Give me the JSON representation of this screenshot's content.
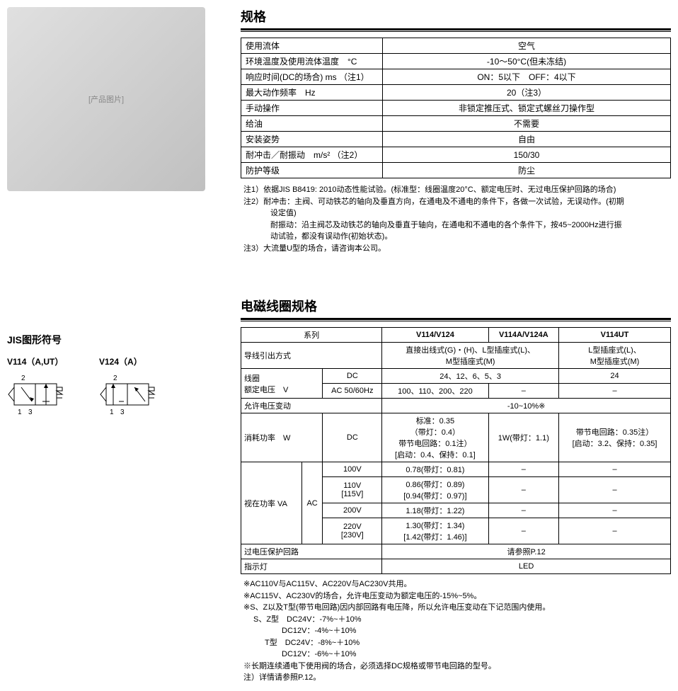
{
  "section1": {
    "title": "规格"
  },
  "spec": {
    "rows": [
      {
        "label": "使用流体",
        "val": "空气"
      },
      {
        "label": "环境温度及使用流体温度　°C",
        "val": "-10～50°C(但未冻结)"
      },
      {
        "label": "响应时间(DC的场合) ms （注1）",
        "val": "ON：5以下　OFF：4以下"
      },
      {
        "label": "最大动作频率　Hz",
        "val": "20（注3）"
      },
      {
        "label": "手动操作",
        "val": "非锁定推压式、锁定式螺丝刀操作型"
      },
      {
        "label": "给油",
        "val": "不需要"
      },
      {
        "label": "安装姿势",
        "val": "自由"
      },
      {
        "label": "耐冲击／耐振动　m/s² （注2）",
        "val": "150/30"
      },
      {
        "label": "防护等级",
        "val": "防尘"
      }
    ]
  },
  "notes1": {
    "n1": "注1）依据JIS B8419: 2010动态性能试验。(标准型：线圈温度20°C、额定电压时、无过电压保护回路的场合)",
    "n2a": "注2）耐冲击：主阀、可动铁芯的轴向及垂直方向，在通电及不通电的条件下，各做一次试验，无误动作。(初期",
    "n2b": "设定值)",
    "n2c": "耐振动：沿主阀芯及动铁芯的轴向及垂直于轴向，在通电和不通电的各个条件下，按45~2000Hz进行振",
    "n2d": "动试验，都没有误动作(初始状态)。",
    "n3": "注3）大流量U型的场合，请咨询本公司。"
  },
  "section2": {
    "title": "电磁线圈规格"
  },
  "jis": {
    "title": "JIS图形符号",
    "sym1": "V114（A,UT）",
    "sym2": "V124（A）"
  },
  "coil": {
    "h_series": "系列",
    "h_v114": "V114/V124",
    "h_v114a": "V114A/V124A",
    "h_v114ut": "V114UT",
    "lead_label": "导线引出方式",
    "lead_v1": "直接出线式(G)・(H)、L型插座式(L)、\nM型插座式(M)",
    "lead_v3": "L型插座式(L)、\nM型插座式(M)",
    "coil_label": "线圈\n额定电压　V",
    "dc": "DC",
    "dc_val": "24、12、6、5、3",
    "dc_val3": "24",
    "ac": "AC 50/60Hz",
    "ac_val": "100、110、200、220",
    "dash": "–",
    "volt_label": "允许电压变动",
    "volt_val": "-10~10%※",
    "power_label": "消耗功率　W",
    "power_dc": "DC",
    "power_v1": "标准：0.35\n（带灯：0.4）\n带节电回路：0.1注）\n[启动：0.4、保持：0.1]",
    "power_v2": "1W(带灯：1.1)",
    "power_v3": "带节电回路：0.35注）\n[启动：3.2、保持：0.35]",
    "va_label": "视在功率 VA",
    "va_ac": "AC",
    "va_100": "100V",
    "va_100v": "0.78(带灯：0.81)",
    "va_110": "110V\n[115V]",
    "va_110v": "0.86(带灯：0.89)\n[0.94(带灯：0.97)]",
    "va_200": "200V",
    "va_200v": "1.18(带灯：1.22)",
    "va_220": "220V\n[230V]",
    "va_220v": "1.30(带灯：1.34)\n[1.42(带灯：1.46)]",
    "surge_label": "过电压保护回路",
    "surge_val": "请参照P.12",
    "led_label": "指示灯",
    "led_val": "LED"
  },
  "notes2": {
    "l1": "※AC110V与AC115V、AC220V与AC230V共用。",
    "l2": "※AC115V、AC230V的场合，允许电压变动为额定电压的-15%~5%。",
    "l3": "※S、Z以及T型(带节电回路)因内部回路有电压降，所以允许电压变动在下记范围内使用。",
    "l4": "S、Z型　DC24V：-7%~＋10%",
    "l5": "DC12V：-4%~＋10%",
    "l6": "T型　DC24V：-8%~＋10%",
    "l7": "DC12V：-6%~＋10%",
    "l8": "※长期连续通电下使用阀的场合，必须选择DC规格或带节电回路的型号。",
    "l9": "注）详情请参照P.12。"
  }
}
